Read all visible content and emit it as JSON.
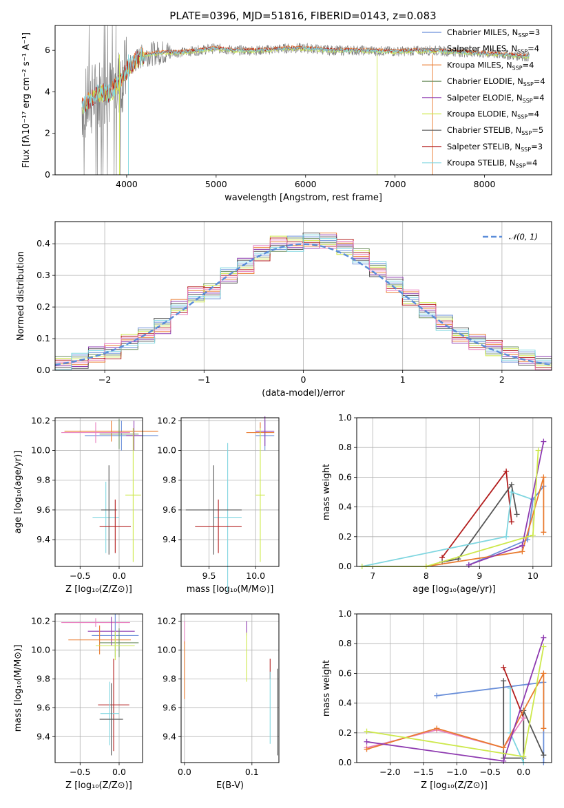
{
  "figure_title": "PLATE=0396, MJD=51816, FIBERID=0143, z=0.083",
  "colors": {
    "chabrier_miles": "#6a8fd9",
    "salpeter_miles": "#8a8a8a",
    "kroupa_miles": "#e97a2e",
    "chabrier_elodie": "#6b8e5e",
    "salpeter_elodie": "#8e3ab0",
    "kroupa_elodie": "#cde84b",
    "chabrier_stelib": "#555555",
    "salpeter_stelib": "#b31d1d",
    "kroupa_stelib": "#7fd6e0",
    "pink": "#e87fbf",
    "dashed": "#5b8dd9",
    "data": "#808080"
  },
  "legend": [
    {
      "name": "Chabrier MILES, N",
      "sub": "SSP",
      "tail": "=3",
      "color_key": "chabrier_miles"
    },
    {
      "name": "Salpeter MILES, N",
      "sub": "SSP",
      "tail": "=4",
      "color_key": "salpeter_miles"
    },
    {
      "name": "Kroupa MILES, N",
      "sub": "SSP",
      "tail": "=4",
      "color_key": "kroupa_miles"
    },
    {
      "name": "Chabrier ELODIE, N",
      "sub": "SSP",
      "tail": "=4",
      "color_key": "chabrier_elodie"
    },
    {
      "name": "Salpeter ELODIE, N",
      "sub": "SSP",
      "tail": "=4",
      "color_key": "salpeter_elodie"
    },
    {
      "name": "Kroupa ELODIE, N",
      "sub": "SSP",
      "tail": "=4",
      "color_key": "kroupa_elodie"
    },
    {
      "name": "Chabrier STELIB, N",
      "sub": "SSP",
      "tail": "=5",
      "color_key": "chabrier_stelib"
    },
    {
      "name": "Salpeter STELIB, N",
      "sub": "SSP",
      "tail": "=3",
      "color_key": "salpeter_stelib"
    },
    {
      "name": "Kroupa STELIB, N",
      "sub": "SSP",
      "tail": "=4",
      "color_key": "kroupa_stelib"
    }
  ],
  "chart_data": [
    {
      "id": "spectrum",
      "type": "line",
      "xlabel": "wavelength [Angstrom, rest frame]",
      "ylabel": "Flux [fλ10⁻¹⁷ erg cm⁻² s⁻¹ A⁻¹]",
      "xlim": [
        3200,
        8750
      ],
      "ylim": [
        0,
        7.2
      ],
      "xticks": [
        4000,
        5000,
        6000,
        7000,
        8000
      ],
      "yticks": [
        0,
        2,
        4,
        6
      ],
      "series_points_x": [
        3500,
        3600,
        3700,
        3800,
        3900,
        4000,
        4100,
        4200,
        4400,
        4600,
        4800,
        5000,
        5200,
        5500,
        5800,
        6000,
        6300,
        6600,
        7000,
        7400,
        7800,
        8200,
        8500
      ],
      "series_points_y": [
        3.3,
        3.6,
        4.0,
        3.9,
        4.4,
        5.0,
        5.5,
        5.8,
        5.9,
        5.9,
        6.0,
        6.1,
        6.0,
        6.0,
        6.1,
        6.1,
        6.0,
        6.0,
        5.95,
        6.0,
        5.9,
        5.8,
        5.7
      ]
    },
    {
      "id": "residual_hist",
      "type": "bar",
      "xlabel": "(data-model)/error",
      "ylabel": "Normed distribution",
      "xlim": [
        -2.5,
        2.5
      ],
      "ylim": [
        0,
        0.47
      ],
      "xticks": [
        -2,
        -1,
        0,
        1,
        2
      ],
      "yticks": [
        0.0,
        0.1,
        0.2,
        0.3,
        0.4
      ],
      "gaussian_label": "𝒩(0, 1)",
      "hist_centers": [
        -2.42,
        -2.25,
        -2.08,
        -1.92,
        -1.75,
        -1.58,
        -1.42,
        -1.25,
        -1.08,
        -0.92,
        -0.75,
        -0.58,
        -0.42,
        -0.25,
        -0.08,
        0.08,
        0.25,
        0.42,
        0.58,
        0.75,
        0.92,
        1.08,
        1.25,
        1.42,
        1.58,
        1.75,
        1.92,
        2.08,
        2.25,
        2.42
      ],
      "hist_values": [
        0.02,
        0.03,
        0.05,
        0.06,
        0.09,
        0.11,
        0.14,
        0.2,
        0.24,
        0.25,
        0.3,
        0.33,
        0.37,
        0.4,
        0.4,
        0.41,
        0.41,
        0.39,
        0.36,
        0.32,
        0.27,
        0.23,
        0.19,
        0.15,
        0.11,
        0.09,
        0.07,
        0.05,
        0.04,
        0.02
      ]
    },
    {
      "id": "age_vs_Z",
      "type": "scatter",
      "xlabel": "Z [log₁₀(Z/Z⊙)]",
      "ylabel": "age  [log₁₀(age/yr)]",
      "xlim": [
        -0.82,
        0.3
      ],
      "ylim": [
        9.22,
        10.22
      ],
      "xticks": [
        -0.5,
        0.0
      ],
      "yticks": [
        9.4,
        9.6,
        9.8,
        10.0,
        10.2
      ],
      "points": [
        {
          "color_key": "chabrier_miles",
          "x": 0.03,
          "y": 10.1,
          "xerr": 0.47,
          "yerr": 0.1
        },
        {
          "color_key": "kroupa_miles",
          "x": -0.1,
          "y": 10.13,
          "xerr": 0.6,
          "yerr": 0.07
        },
        {
          "color_key": "pink",
          "x": -0.3,
          "y": 10.12,
          "xerr": 0.44,
          "yerr": 0.07
        },
        {
          "color_key": "chabrier_elodie",
          "x": 0.0,
          "y": 10.11,
          "xerr": 0.25,
          "yerr": 0.1
        },
        {
          "color_key": "salpeter_elodie",
          "x": 0.19,
          "y": 10.1,
          "xerr": 0.1,
          "yerr": 0.1
        },
        {
          "color_key": "kroupa_elodie",
          "x": 0.18,
          "y": 9.7,
          "xerr": 0.1,
          "yerr": 0.45
        },
        {
          "color_key": "kroupa_stelib",
          "x": -0.17,
          "y": 9.55,
          "xerr": 0.17,
          "yerr": 0.24
        },
        {
          "color_key": "chabrier_stelib",
          "x": -0.13,
          "y": 9.6,
          "xerr": 0.1,
          "yerr": 0.3
        },
        {
          "color_key": "salpeter_stelib",
          "x": -0.05,
          "y": 9.49,
          "xerr": 0.2,
          "yerr": 0.18
        }
      ]
    },
    {
      "id": "age_vs_mass",
      "type": "scatter",
      "xlabel": "mass [log₁₀(M/M⊙)]",
      "ylabel": "",
      "xlim": [
        9.2,
        10.25
      ],
      "ylim": [
        9.22,
        10.22
      ],
      "xticks": [
        9.5,
        10.0
      ],
      "yticks": [
        9.4,
        9.6,
        9.8,
        10.0,
        10.2
      ],
      "points": [
        {
          "color_key": "chabrier_miles",
          "x": 10.1,
          "y": 10.1,
          "xerr": 0.1,
          "yerr": 0.1
        },
        {
          "color_key": "kroupa_miles",
          "x": 10.05,
          "y": 10.12,
          "xerr": 0.15,
          "yerr": 0.07
        },
        {
          "color_key": "salpeter_elodie",
          "x": 10.1,
          "y": 10.13,
          "xerr": 0.1,
          "yerr": 0.1
        },
        {
          "color_key": "kroupa_elodie",
          "x": 10.05,
          "y": 9.7,
          "xerr": 0.05,
          "yerr": 0.45
        },
        {
          "color_key": "kroupa_stelib",
          "x": 9.7,
          "y": 9.55,
          "xerr": 0.15,
          "yerr": 0.5
        },
        {
          "color_key": "chabrier_stelib",
          "x": 9.55,
          "y": 9.6,
          "xerr": 0.3,
          "yerr": 0.3
        },
        {
          "color_key": "salpeter_stelib",
          "x": 9.6,
          "y": 9.49,
          "xerr": 0.25,
          "yerr": 0.18
        }
      ]
    },
    {
      "id": "mass_weight_vs_age",
      "type": "line",
      "xlabel": "age  [log₁₀(age/yr)]",
      "ylabel": "mass weight",
      "xlim": [
        6.7,
        10.35
      ],
      "ylim": [
        0,
        1.0
      ],
      "xticks": [
        7,
        8,
        9,
        10
      ],
      "yticks": [
        0.0,
        0.2,
        0.4,
        0.6,
        0.8,
        1.0
      ],
      "series": [
        {
          "color_key": "salpeter_stelib",
          "x": [
            8.3,
            9.5,
            9.6
          ],
          "y": [
            0.06,
            0.64,
            0.3
          ]
        },
        {
          "color_key": "chabrier_stelib",
          "x": [
            8.3,
            8.6,
            9.6,
            9.7
          ],
          "y": [
            0.03,
            0.05,
            0.55,
            0.35
          ]
        },
        {
          "color_key": "kroupa_stelib",
          "x": [
            6.8,
            9.5,
            9.6,
            10.0
          ],
          "y": [
            0.0,
            0.2,
            0.5,
            0.45
          ]
        },
        {
          "color_key": "chabrier_miles",
          "x": [
            8.8,
            9.9,
            10.0,
            10.2
          ],
          "y": [
            0.01,
            0.18,
            0.45,
            0.54
          ]
        },
        {
          "color_key": "kroupa_miles",
          "x": [
            8.0,
            9.8,
            10.2,
            10.2
          ],
          "y": [
            0.0,
            0.1,
            0.6,
            0.23
          ]
        },
        {
          "color_key": "salpeter_elodie",
          "x": [
            8.8,
            9.8,
            10.2
          ],
          "y": [
            0.01,
            0.14,
            0.84
          ]
        },
        {
          "color_key": "kroupa_elodie",
          "x": [
            6.8,
            8.0,
            10.0,
            10.1
          ],
          "y": [
            0.0,
            0.0,
            0.21,
            0.78
          ]
        }
      ]
    },
    {
      "id": "mass_vs_Z",
      "type": "scatter",
      "xlabel": "Z [log₁₀(Z/Z⊙)]",
      "ylabel": "mass [log₁₀(M/M⊙)]",
      "xlim": [
        -0.82,
        0.3
      ],
      "ylim": [
        9.22,
        10.25
      ],
      "xticks": [
        -0.5,
        0.0
      ],
      "yticks": [
        9.4,
        9.6,
        9.8,
        10.0,
        10.2
      ],
      "points": [
        {
          "color_key": "pink",
          "x": -0.3,
          "y": 10.19,
          "xerr": 0.44,
          "yerr": 0.03
        },
        {
          "color_key": "salpeter_elodie",
          "x": -0.1,
          "y": 10.13,
          "xerr": 0.3,
          "yerr": 0.1
        },
        {
          "color_key": "chabrier_miles",
          "x": -0.05,
          "y": 10.1,
          "xerr": 0.3,
          "yerr": 0.15
        },
        {
          "color_key": "kroupa_miles",
          "x": -0.25,
          "y": 10.07,
          "xerr": 0.4,
          "yerr": 0.1
        },
        {
          "color_key": "chabrier_elodie",
          "x": 0.0,
          "y": 10.05,
          "xerr": 0.25,
          "yerr": 0.1
        },
        {
          "color_key": "kroupa_elodie",
          "x": -0.05,
          "y": 10.03,
          "xerr": 0.25,
          "yerr": 0.1
        },
        {
          "color_key": "salpeter_stelib",
          "x": -0.07,
          "y": 9.62,
          "xerr": 0.2,
          "yerr": 0.32
        },
        {
          "color_key": "kroupa_stelib",
          "x": -0.12,
          "y": 9.56,
          "xerr": 0.12,
          "yerr": 0.22
        },
        {
          "color_key": "chabrier_stelib",
          "x": -0.1,
          "y": 9.52,
          "xerr": 0.15,
          "yerr": 0.25
        }
      ]
    },
    {
      "id": "mass_vs_ebv",
      "type": "scatter",
      "xlabel": "E(B-V)",
      "ylabel": "",
      "xlim": [
        -0.005,
        0.14
      ],
      "ylim": [
        9.22,
        10.25
      ],
      "xticks": [
        0.0,
        0.1
      ],
      "yticks": [
        9.4,
        9.6,
        9.8,
        10.0,
        10.2
      ],
      "points": [
        {
          "color_key": "pink",
          "x": 0.0,
          "y": 10.12,
          "xerr": 0.0,
          "yerr": 0.08
        },
        {
          "color_key": "kroupa_miles",
          "x": 0.0,
          "y": 9.86,
          "xerr": 0.0,
          "yerr": 0.2
        },
        {
          "color_key": "salpeter_elodie",
          "x": 0.092,
          "y": 10.15,
          "xerr": 0.0,
          "yerr": 0.05
        },
        {
          "color_key": "kroupa_elodie",
          "x": 0.092,
          "y": 9.95,
          "xerr": 0.0,
          "yerr": 0.17
        },
        {
          "color_key": "salpeter_stelib",
          "x": 0.127,
          "y": 9.87,
          "xerr": 0.0,
          "yerr": 0.07
        },
        {
          "color_key": "kroupa_stelib",
          "x": 0.127,
          "y": 9.6,
          "xerr": 0.0,
          "yerr": 0.25
        },
        {
          "color_key": "chabrier_stelib",
          "x": 0.138,
          "y": 9.57,
          "xerr": 0.0,
          "yerr": 0.3
        }
      ]
    },
    {
      "id": "mass_weight_vs_Z",
      "type": "line",
      "xlabel": "Z [log₁₀(Z/Z⊙)]",
      "ylabel": "mass weight",
      "xlim": [
        -2.5,
        0.42
      ],
      "ylim": [
        0,
        1.0
      ],
      "xticks": [
        -2.0,
        -1.5,
        -1.0,
        -0.5,
        0.0
      ],
      "yticks": [
        0.0,
        0.2,
        0.4,
        0.6,
        0.8,
        1.0
      ],
      "series": [
        {
          "color_key": "chabrier_miles",
          "x": [
            -1.3,
            0.3,
            0.3
          ],
          "y": [
            0.45,
            0.54,
            0.0
          ]
        },
        {
          "color_key": "salpeter_stelib",
          "x": [
            -0.3,
            0.0
          ],
          "y": [
            0.64,
            0.3
          ]
        },
        {
          "color_key": "chabrier_stelib",
          "x": [
            -0.3,
            -0.3,
            0.0,
            0.0,
            0.3
          ],
          "y": [
            0.55,
            0.03,
            0.03,
            0.35,
            0.05
          ]
        },
        {
          "color_key": "kroupa_stelib",
          "x": [
            -0.2,
            -0.2,
            0.0
          ],
          "y": [
            0.5,
            0.2,
            0.0
          ]
        },
        {
          "color_key": "pink",
          "x": [
            -2.35,
            -1.3,
            -0.3,
            0.0
          ],
          "y": [
            0.1,
            0.22,
            0.1,
            0.3
          ]
        },
        {
          "color_key": "kroupa_miles",
          "x": [
            -2.35,
            -1.3,
            -0.3,
            0.3,
            0.3
          ],
          "y": [
            0.09,
            0.23,
            0.1,
            0.6,
            0.23
          ]
        },
        {
          "color_key": "salpeter_elodie",
          "x": [
            -2.35,
            -0.3,
            0.3
          ],
          "y": [
            0.14,
            0.01,
            0.84
          ]
        },
        {
          "color_key": "kroupa_elodie",
          "x": [
            -2.35,
            0.0,
            0.3
          ],
          "y": [
            0.21,
            0.04,
            0.78
          ]
        }
      ]
    }
  ]
}
